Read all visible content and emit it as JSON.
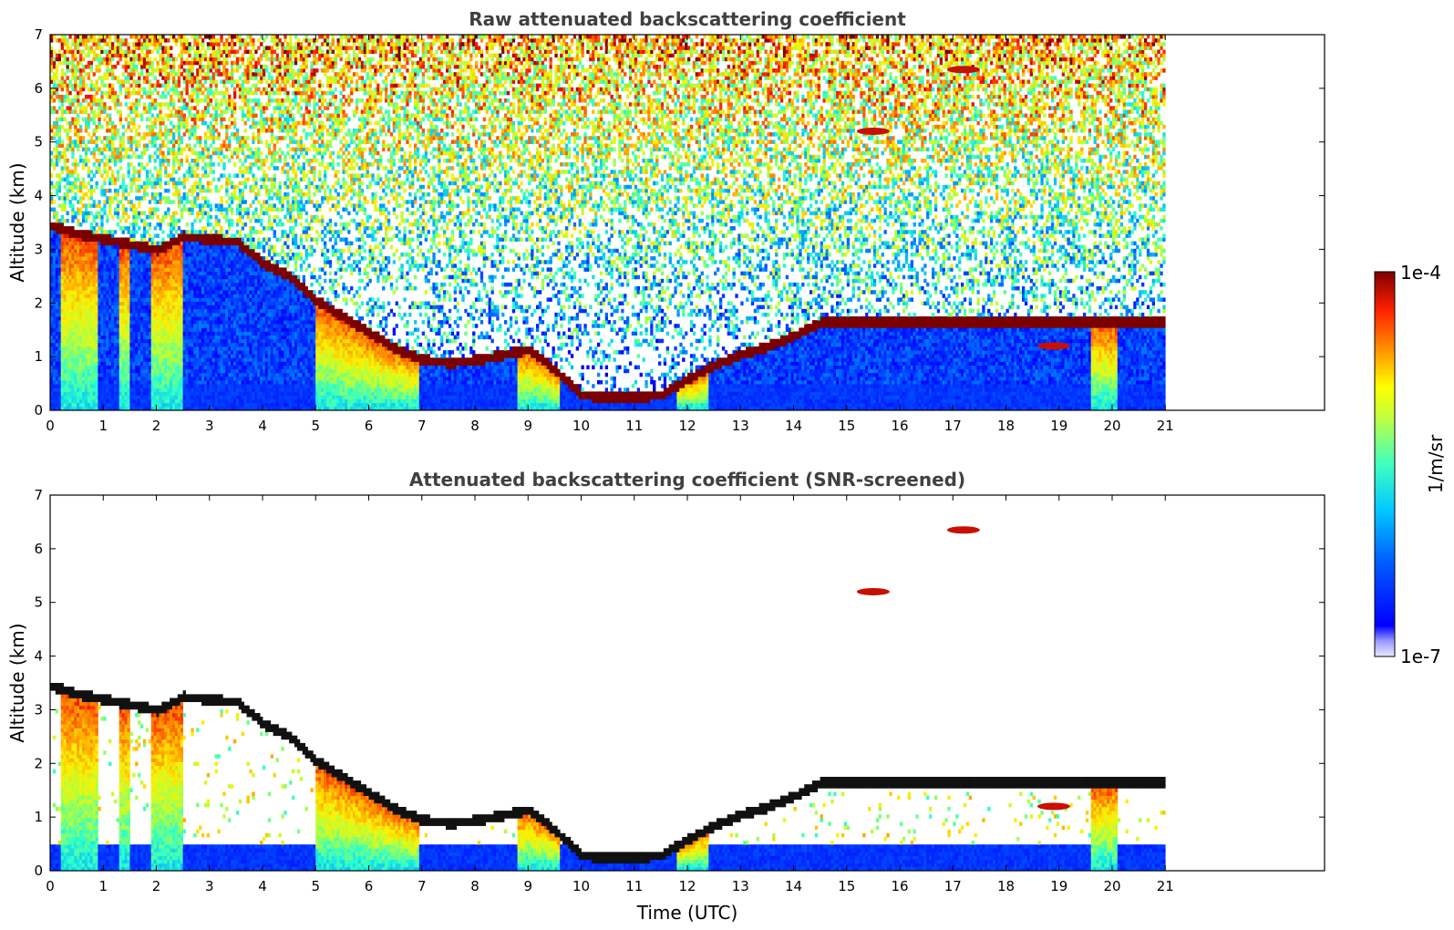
{
  "chart_data": [
    {
      "type": "heatmap",
      "title": "Raw attenuated backscattering coefficient",
      "xlabel": "",
      "ylabel": "Altitude (km)",
      "xlim": [
        0,
        24
      ],
      "ylim": [
        0,
        7
      ],
      "x_ticks": [
        0,
        1,
        2,
        3,
        4,
        5,
        6,
        7,
        8,
        9,
        10,
        11,
        12,
        13,
        14,
        15,
        16,
        17,
        18,
        19,
        20,
        21
      ],
      "y_ticks": [
        0,
        1,
        2,
        3,
        4,
        5,
        6,
        7
      ],
      "data_end_time": 21,
      "screened": false,
      "cloud_layer": {
        "time": [
          0,
          0.5,
          1,
          1.5,
          2,
          2.5,
          3,
          3.5,
          4,
          4.5,
          5,
          5.5,
          6,
          6.5,
          7,
          7.5,
          8,
          8.5,
          9,
          9.5,
          10,
          10.5,
          11,
          11.5,
          12,
          12.5,
          13,
          13.5,
          14,
          14.5
        ],
        "altitude": [
          3.4,
          3.25,
          3.15,
          3.05,
          2.95,
          3.2,
          3.15,
          3.1,
          2.7,
          2.45,
          2.0,
          1.7,
          1.4,
          1.1,
          0.9,
          0.85,
          0.9,
          1.0,
          1.1,
          0.7,
          0.25,
          0.2,
          0.2,
          0.25,
          0.55,
          0.8,
          1.0,
          1.15,
          1.35,
          1.6
        ]
      },
      "upper_clouds": [
        {
          "time": 15.5,
          "altitude": 5.2
        },
        {
          "time": 17.2,
          "altitude": 6.35
        },
        {
          "time": 18.9,
          "altitude": 1.2
        }
      ],
      "colorbar": {
        "min": "1e-7",
        "max": "1e-4",
        "label": "1/m/sr",
        "scale": "log",
        "colormap": "jet"
      }
    },
    {
      "type": "heatmap",
      "title": "Attenuated backscattering coefficient (SNR-screened)",
      "xlabel": "Time (UTC)",
      "ylabel": "Altitude (km)",
      "xlim": [
        0,
        24
      ],
      "ylim": [
        0,
        7
      ],
      "x_ticks": [
        0,
        1,
        2,
        3,
        4,
        5,
        6,
        7,
        8,
        9,
        10,
        11,
        12,
        13,
        14,
        15,
        16,
        17,
        18,
        19,
        20,
        21
      ],
      "y_ticks": [
        0,
        1,
        2,
        3,
        4,
        5,
        6,
        7
      ],
      "data_end_time": 21,
      "screened": true,
      "cloud_layer": {
        "time": [
          0,
          0.5,
          1,
          1.5,
          2,
          2.5,
          3,
          3.5,
          4,
          4.5,
          5,
          5.5,
          6,
          6.5,
          7,
          7.5,
          8,
          8.5,
          9,
          9.5,
          10,
          10.5,
          11,
          11.5,
          12,
          12.5,
          13,
          13.5,
          14,
          14.5
        ],
        "altitude": [
          3.4,
          3.25,
          3.15,
          3.05,
          2.95,
          3.2,
          3.15,
          3.1,
          2.7,
          2.45,
          2.0,
          1.7,
          1.4,
          1.1,
          0.9,
          0.85,
          0.9,
          1.0,
          1.1,
          0.7,
          0.25,
          0.2,
          0.2,
          0.25,
          0.55,
          0.8,
          1.0,
          1.15,
          1.35,
          1.6
        ]
      },
      "upper_clouds": [
        {
          "time": 15.5,
          "altitude": 5.2
        },
        {
          "time": 17.2,
          "altitude": 6.35
        },
        {
          "time": 18.9,
          "altitude": 1.2
        }
      ],
      "colorbar": {
        "min": "1e-7",
        "max": "1e-4",
        "label": "1/m/sr",
        "scale": "log",
        "colormap": "jet"
      }
    }
  ],
  "colorbar": {
    "max_label": "1e-4",
    "min_label": "1e-7",
    "unit_label": "1/m/sr"
  }
}
